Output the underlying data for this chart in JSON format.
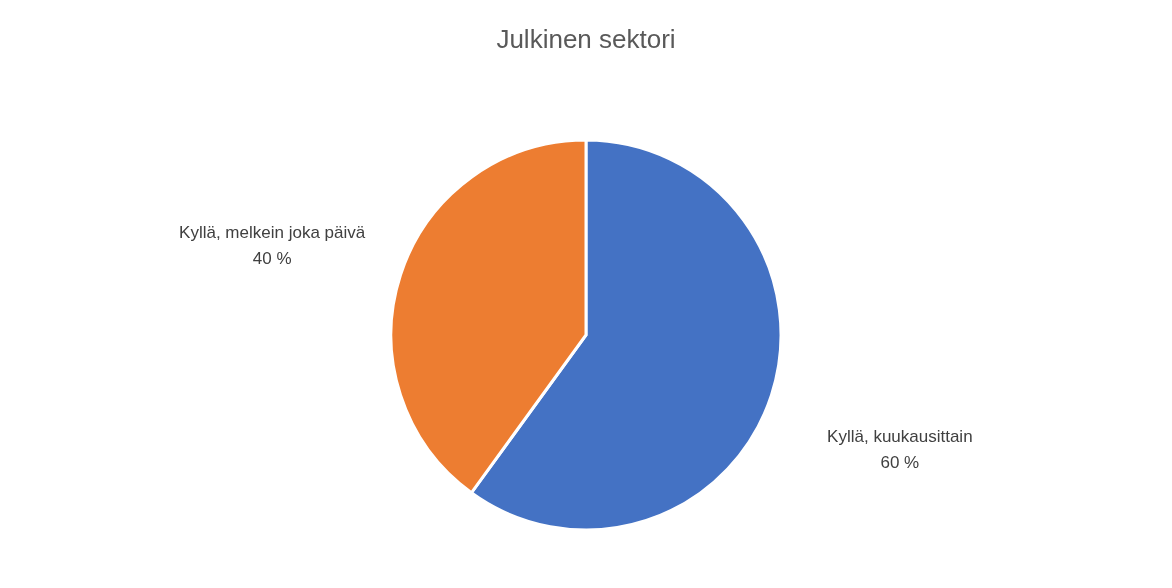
{
  "chart_data": {
    "type": "pie",
    "title": "Julkinen sektori",
    "categories": [
      "Kyllä, kuukausittain",
      "Kyllä, melkein joka päivä"
    ],
    "values": [
      60,
      40
    ],
    "colors": [
      "#4472c4",
      "#ed7d31"
    ],
    "value_labels": [
      "60 %",
      "40 %"
    ],
    "legend": false
  }
}
